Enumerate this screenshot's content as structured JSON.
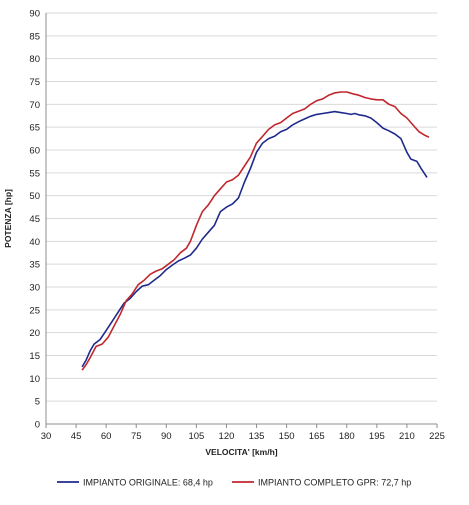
{
  "chart_data": {
    "type": "line",
    "xlabel": "VELOCITA' [km/h]",
    "ylabel": "POTENZA [hp]",
    "xlim": [
      30,
      225
    ],
    "ylim": [
      0,
      90
    ],
    "xticks": [
      30,
      45,
      60,
      75,
      90,
      105,
      120,
      135,
      150,
      165,
      180,
      195,
      210,
      225
    ],
    "yticks": [
      0,
      5,
      10,
      15,
      20,
      25,
      30,
      35,
      40,
      45,
      50,
      55,
      60,
      65,
      70,
      75,
      80,
      85,
      90
    ],
    "grid": "horizontal",
    "legend_position": "bottom",
    "series": [
      {
        "name": "IMPIANTO ORIGINALE: 68,4 hp",
        "color": "#1f2a8c",
        "points": [
          [
            48,
            12.5
          ],
          [
            50,
            14
          ],
          [
            52,
            16
          ],
          [
            54,
            17.5
          ],
          [
            57,
            18.5
          ],
          [
            60,
            20.5
          ],
          [
            63,
            22.5
          ],
          [
            66,
            24.5
          ],
          [
            69,
            26.5
          ],
          [
            72,
            27.5
          ],
          [
            75,
            29
          ],
          [
            78,
            30.2
          ],
          [
            81,
            30.5
          ],
          [
            84,
            31.5
          ],
          [
            87,
            32.5
          ],
          [
            90,
            33.8
          ],
          [
            93,
            34.8
          ],
          [
            96,
            35.7
          ],
          [
            99,
            36.3
          ],
          [
            102,
            37
          ],
          [
            105,
            38.5
          ],
          [
            108,
            40.5
          ],
          [
            111,
            42
          ],
          [
            114,
            43.5
          ],
          [
            117,
            46.5
          ],
          [
            120,
            47.5
          ],
          [
            123,
            48.2
          ],
          [
            126,
            49.5
          ],
          [
            129,
            53
          ],
          [
            132,
            56
          ],
          [
            135,
            59.5
          ],
          [
            138,
            61.5
          ],
          [
            141,
            62.5
          ],
          [
            144,
            63
          ],
          [
            147,
            64
          ],
          [
            150,
            64.5
          ],
          [
            153,
            65.5
          ],
          [
            156,
            66.2
          ],
          [
            159,
            66.8
          ],
          [
            162,
            67.4
          ],
          [
            165,
            67.8
          ],
          [
            168,
            68
          ],
          [
            171,
            68.2
          ],
          [
            174,
            68.4
          ],
          [
            177,
            68.2
          ],
          [
            180,
            68
          ],
          [
            182,
            67.8
          ],
          [
            184,
            68
          ],
          [
            186,
            67.7
          ],
          [
            189,
            67.5
          ],
          [
            192,
            67
          ],
          [
            195,
            66
          ],
          [
            198,
            64.8
          ],
          [
            201,
            64.2
          ],
          [
            204,
            63.5
          ],
          [
            207,
            62.5
          ],
          [
            210,
            59.5
          ],
          [
            212,
            58
          ],
          [
            215,
            57.5
          ],
          [
            217,
            56
          ],
          [
            220,
            54
          ]
        ]
      },
      {
        "name": "IMPIANTO COMPLETO GPR: 72,7 hp",
        "color": "#c0282d",
        "points": [
          [
            48,
            11.8
          ],
          [
            50,
            13
          ],
          [
            52,
            14.5
          ],
          [
            55,
            17
          ],
          [
            58,
            17.5
          ],
          [
            61,
            19
          ],
          [
            64,
            21.5
          ],
          [
            67,
            24
          ],
          [
            70,
            27
          ],
          [
            73,
            28.5
          ],
          [
            76,
            30.5
          ],
          [
            79,
            31.5
          ],
          [
            82,
            32.8
          ],
          [
            85,
            33.5
          ],
          [
            88,
            34
          ],
          [
            91,
            35
          ],
          [
            94,
            36
          ],
          [
            97,
            37.5
          ],
          [
            100,
            38.5
          ],
          [
            102,
            40
          ],
          [
            105,
            43.5
          ],
          [
            108,
            46.5
          ],
          [
            111,
            48
          ],
          [
            114,
            50
          ],
          [
            117,
            51.5
          ],
          [
            120,
            53
          ],
          [
            123,
            53.5
          ],
          [
            126,
            54.5
          ],
          [
            129,
            56.5
          ],
          [
            132,
            58.5
          ],
          [
            135,
            61.5
          ],
          [
            138,
            63
          ],
          [
            141,
            64.5
          ],
          [
            144,
            65.5
          ],
          [
            147,
            66
          ],
          [
            150,
            67
          ],
          [
            153,
            68
          ],
          [
            156,
            68.5
          ],
          [
            159,
            69
          ],
          [
            162,
            70
          ],
          [
            165,
            70.8
          ],
          [
            168,
            71.2
          ],
          [
            171,
            72
          ],
          [
            174,
            72.5
          ],
          [
            177,
            72.7
          ],
          [
            180,
            72.7
          ],
          [
            183,
            72.3
          ],
          [
            186,
            72
          ],
          [
            189,
            71.5
          ],
          [
            192,
            71.2
          ],
          [
            195,
            71
          ],
          [
            198,
            71
          ],
          [
            201,
            70
          ],
          [
            204,
            69.5
          ],
          [
            207,
            68
          ],
          [
            210,
            67
          ],
          [
            213,
            65.5
          ],
          [
            216,
            64
          ],
          [
            219,
            63.2
          ],
          [
            221,
            62.8
          ]
        ]
      }
    ]
  }
}
